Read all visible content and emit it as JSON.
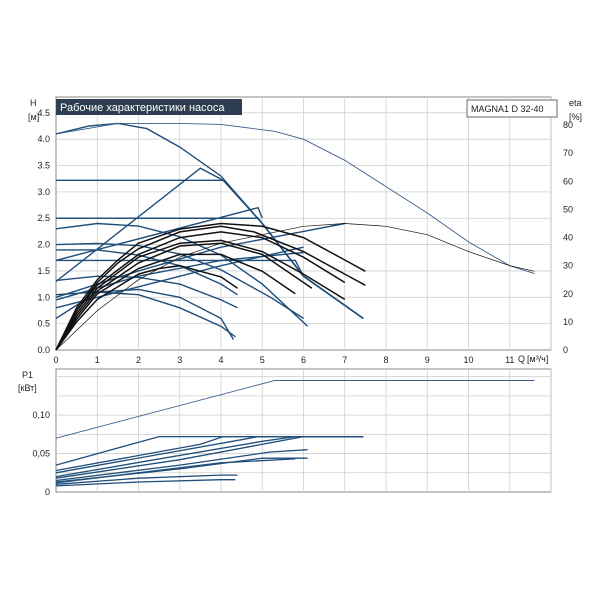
{
  "chart_data": [
    {
      "type": "line",
      "title": "Рабочие характеристики насоса",
      "model": "MAGNA1 D 32-40",
      "ylabel": "H",
      "yunit": "[м]",
      "y2label": "eta",
      "y2unit": "[%]",
      "xlabel": "Q",
      "xunit": "[м³/ч]",
      "xlim": [
        0,
        12
      ],
      "ylim": [
        0,
        4.8
      ],
      "y2lim": [
        0,
        90
      ],
      "x_ticks": [
        "0",
        "1",
        "2",
        "3",
        "4",
        "5",
        "6",
        "7",
        "8",
        "9",
        "10",
        "11"
      ],
      "y_ticks": [
        "0.0",
        "0.5",
        "1.0",
        "1.5",
        "2.0",
        "2.5",
        "3.0",
        "3.5",
        "4.0",
        "4.5"
      ],
      "y2_ticks": [
        "0",
        "10",
        "20",
        "30",
        "40",
        "50",
        "60",
        "70",
        "80"
      ],
      "grid": true,
      "head_curves": [
        {
          "points": [
            [
              0,
              4.1
            ],
            [
              0.8,
              4.25
            ],
            [
              1.5,
              4.3
            ],
            [
              2.2,
              4.2
            ],
            [
              3,
              3.85
            ],
            [
              4,
              3.3
            ],
            [
              5,
              2.4
            ],
            [
              6,
              1.4
            ],
            [
              7.45,
              0.6
            ]
          ]
        },
        {
          "points": [
            [
              0,
              4.1
            ],
            [
              1.5,
              4.3
            ],
            [
              3,
              4.3
            ],
            [
              4,
              4.28
            ],
            [
              5.3,
              4.15
            ],
            [
              6,
              4.0
            ],
            [
              7,
              3.6
            ],
            [
              8,
              3.1
            ],
            [
              9,
              2.6
            ],
            [
              10,
              2.05
            ],
            [
              11,
              1.6
            ],
            [
              11.6,
              1.45
            ]
          ]
        },
        {
          "points": [
            [
              0,
              3.22
            ],
            [
              4.05,
              3.22
            ],
            [
              5,
              2.4
            ],
            [
              6,
              1.4
            ],
            [
              7.45,
              0.6
            ]
          ]
        },
        {
          "points": [
            [
              0,
              2.5
            ],
            [
              4.9,
              2.5
            ],
            [
              6,
              1.4
            ],
            [
              7.45,
              0.6
            ]
          ]
        },
        {
          "points": [
            [
              0,
              2.5
            ],
            [
              4.9,
              2.5
            ],
            [
              6,
              1.4
            ],
            [
              7.45,
              0.6
            ]
          ]
        },
        {
          "points": [
            [
              0,
              2.3
            ],
            [
              1,
              2.4
            ],
            [
              2,
              2.35
            ],
            [
              3,
              2.15
            ],
            [
              4,
              1.8
            ],
            [
              5,
              1.25
            ],
            [
              6.1,
              0.45
            ]
          ]
        },
        {
          "points": [
            [
              0,
              2.0
            ],
            [
              1,
              2.02
            ],
            [
              2,
              1.98
            ],
            [
              3,
              1.82
            ],
            [
              4,
              1.52
            ],
            [
              5.2,
              1.0
            ],
            [
              6,
              0.6
            ]
          ]
        },
        {
          "points": [
            [
              0,
              1.7
            ],
            [
              5.8,
              1.7
            ],
            [
              6,
              1.4
            ],
            [
              7.45,
              0.6
            ]
          ]
        },
        {
          "points": [
            [
              0,
              1.9
            ],
            [
              1,
              1.9
            ],
            [
              2,
              1.8
            ],
            [
              3,
              1.6
            ],
            [
              4,
              1.25
            ],
            [
              4.4,
              1.05
            ]
          ]
        },
        {
          "points": [
            [
              0,
              1.32
            ],
            [
              1,
              1.4
            ],
            [
              2,
              1.38
            ],
            [
              3,
              1.25
            ],
            [
              4,
              0.95
            ],
            [
              4.4,
              0.8
            ]
          ]
        },
        {
          "points": [
            [
              0,
              1.05
            ],
            [
              1,
              1.1
            ],
            [
              2,
              1.05
            ],
            [
              3,
              0.8
            ],
            [
              4,
              0.45
            ],
            [
              4.35,
              0.25
            ]
          ]
        },
        {
          "points": [
            [
              0,
              1.0
            ],
            [
              2,
              1.5
            ],
            [
              4,
              1.95
            ],
            [
              6,
              2.25
            ],
            [
              7,
              2.4
            ]
          ]
        },
        {
          "points": [
            [
              0,
              0.95
            ],
            [
              2,
              1.4
            ],
            [
              4,
              1.7
            ],
            [
              6,
              1.85
            ]
          ]
        },
        {
          "points": [
            [
              0,
              0.8
            ],
            [
              2,
              1.2
            ],
            [
              4,
              1.6
            ],
            [
              6,
              1.95
            ]
          ]
        },
        {
          "points": [
            [
              0,
              1.3
            ],
            [
              3.5,
              3.45
            ],
            [
              4.05,
              3.22
            ]
          ]
        },
        {
          "points": [
            [
              0,
              1.7
            ],
            [
              4.9,
              2.7
            ],
            [
              5.0,
              2.5
            ]
          ]
        },
        {
          "points": [
            [
              0,
              0.6
            ],
            [
              1,
              1.1
            ],
            [
              2,
              1.15
            ],
            [
              3,
              1.0
            ],
            [
              4,
              0.6
            ],
            [
              4.3,
              0.2
            ]
          ]
        }
      ],
      "efficiency_curves": [
        {
          "points": [
            [
              0,
              0
            ],
            [
              0.5,
              15
            ],
            [
              1,
              25
            ],
            [
              1.5,
              32
            ],
            [
              2,
              38
            ],
            [
              3,
              43
            ],
            [
              4,
              45
            ],
            [
              5,
              44
            ],
            [
              6,
              40
            ],
            [
              7,
              32
            ],
            [
              7.5,
              28
            ]
          ]
        },
        {
          "points": [
            [
              0,
              0
            ],
            [
              0.5,
              14
            ],
            [
              1,
              24
            ],
            [
              1.5,
              31
            ],
            [
              2,
              36
            ],
            [
              3,
              42
            ],
            [
              4,
              44
            ],
            [
              4.8,
              42
            ],
            [
              6,
              35
            ],
            [
              7,
              27
            ],
            [
              7.5,
              23
            ]
          ]
        },
        {
          "points": [
            [
              0,
              0
            ],
            [
              0.5,
              14
            ],
            [
              1,
              23
            ],
            [
              2,
              34
            ],
            [
              3,
              40
            ],
            [
              4,
              42
            ],
            [
              5,
              40
            ],
            [
              6,
              33
            ],
            [
              7,
              24
            ]
          ]
        },
        {
          "points": [
            [
              0,
              0
            ],
            [
              0.5,
              13
            ],
            [
              1,
              22
            ],
            [
              2,
              33
            ],
            [
              3,
              38
            ],
            [
              4,
              39
            ],
            [
              5,
              35
            ],
            [
              6,
              27
            ],
            [
              7,
              18
            ]
          ]
        },
        {
          "points": [
            [
              0,
              0
            ],
            [
              0.5,
              12
            ],
            [
              1,
              21
            ],
            [
              2,
              31
            ],
            [
              3,
              37
            ],
            [
              4,
              38
            ],
            [
              5,
              34
            ],
            [
              6,
              24
            ],
            [
              6.2,
              22
            ]
          ]
        },
        {
          "points": [
            [
              0,
              0
            ],
            [
              0.5,
              11
            ],
            [
              1,
              20
            ],
            [
              2,
              29
            ],
            [
              3,
              34
            ],
            [
              4,
              34
            ],
            [
              5,
              28
            ],
            [
              5.8,
              20
            ]
          ]
        },
        {
          "points": [
            [
              0,
              0
            ],
            [
              0.5,
              10
            ],
            [
              1,
              18
            ],
            [
              2,
              27
            ],
            [
              2.5,
              29
            ],
            [
              3,
              30
            ],
            [
              4,
              26
            ],
            [
              4.4,
              22
            ]
          ]
        },
        {
          "points": [
            [
              0,
              0
            ],
            [
              1,
              14
            ],
            [
              2,
              25
            ],
            [
              3,
              33
            ],
            [
              4,
              38
            ],
            [
              5,
              41
            ],
            [
              6,
              44
            ],
            [
              7,
              45
            ],
            [
              8,
              44
            ],
            [
              9,
              41
            ],
            [
              10,
              35
            ],
            [
              11,
              30
            ],
            [
              11.6,
              28
            ]
          ]
        }
      ]
    },
    {
      "type": "line",
      "ylabel": "P1",
      "yunit": "[кВт]",
      "ylim": [
        0,
        0.16
      ],
      "y_ticks": [
        "0",
        "0,05",
        "0,10"
      ],
      "grid": true,
      "power_curves": [
        {
          "points": [
            [
              0,
              0.07
            ],
            [
              5.3,
              0.145
            ],
            [
              11.6,
              0.145
            ]
          ]
        },
        {
          "points": [
            [
              0,
              0.035
            ],
            [
              2.5,
              0.072
            ],
            [
              7.45,
              0.072
            ]
          ]
        },
        {
          "points": [
            [
              0,
              0.028
            ],
            [
              3.5,
              0.062
            ],
            [
              4.05,
              0.072
            ],
            [
              7.45,
              0.072
            ]
          ]
        },
        {
          "points": [
            [
              0,
              0.025
            ],
            [
              4.5,
              0.068
            ],
            [
              4.9,
              0.072
            ],
            [
              7.45,
              0.072
            ]
          ]
        },
        {
          "points": [
            [
              0,
              0.02
            ],
            [
              5.0,
              0.066
            ],
            [
              5.8,
              0.072
            ],
            [
              7.45,
              0.072
            ]
          ]
        },
        {
          "points": [
            [
              0,
              0.018
            ],
            [
              3,
              0.042
            ],
            [
              6,
              0.072
            ],
            [
              7.45,
              0.072
            ]
          ]
        },
        {
          "points": [
            [
              0,
              0.015
            ],
            [
              3,
              0.035
            ],
            [
              5.2,
              0.052
            ],
            [
              6.1,
              0.055
            ]
          ]
        },
        {
          "points": [
            [
              0,
              0.013
            ],
            [
              3,
              0.03
            ],
            [
              5,
              0.044
            ],
            [
              6.1,
              0.044
            ]
          ]
        },
        {
          "points": [
            [
              0,
              0.012
            ],
            [
              2,
              0.025
            ],
            [
              4,
              0.038
            ],
            [
              5.8,
              0.043
            ]
          ]
        },
        {
          "points": [
            [
              0,
              0.01
            ],
            [
              2,
              0.018
            ],
            [
              4,
              0.022
            ],
            [
              4.4,
              0.022
            ]
          ]
        },
        {
          "points": [
            [
              0,
              0.008
            ],
            [
              2,
              0.013
            ],
            [
              4,
              0.016
            ],
            [
              4.35,
              0.016
            ]
          ]
        }
      ]
    }
  ]
}
